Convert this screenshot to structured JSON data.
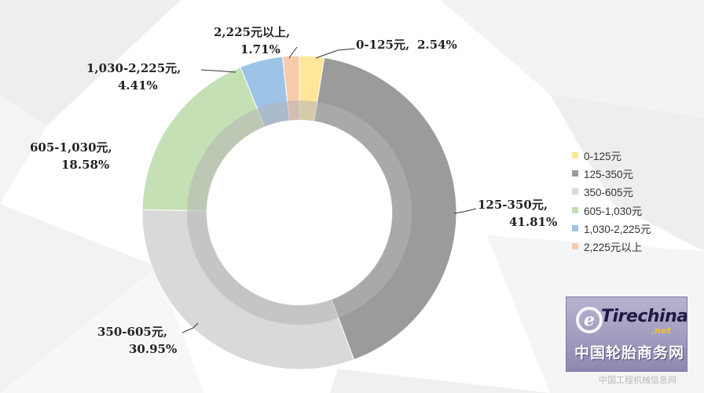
{
  "chart_data": {
    "type": "pie",
    "title": "",
    "series": [
      {
        "name": "0-125元",
        "value": 2.54,
        "label_line1": "0-125元,",
        "label_line2": "2.54%",
        "color": "#ffe699"
      },
      {
        "name": "125-350元",
        "value": 41.81,
        "label_line1": "125-350元,",
        "label_line2": "41.81%",
        "color": "#9b9b9b"
      },
      {
        "name": "350-605元",
        "value": 30.95,
        "label_line1": "350-605元,",
        "label_line2": "30.95%",
        "color": "#d9d9d9"
      },
      {
        "name": "605-1,030元",
        "value": 18.58,
        "label_line1": "605-1,030元,",
        "label_line2": "18.58%",
        "color": "#c5e0b4"
      },
      {
        "name": "1,030-2,225元",
        "value": 4.41,
        "label_line1": "1,030-2,225元,",
        "label_line2": "4.41%",
        "color": "#9dc3e6"
      },
      {
        "name": "2,225元以上",
        "value": 1.71,
        "label_line1": "2,225元以上,",
        "label_line2": "1.71%",
        "color": "#f8cbad"
      }
    ],
    "legend_position": "right"
  },
  "logo": {
    "e_letter": "e",
    "brand": "Tirechina",
    "domain_suffix": ".net",
    "chinese_name": "中国轮胎商务网"
  },
  "watermark": "中国工程机械信息网"
}
